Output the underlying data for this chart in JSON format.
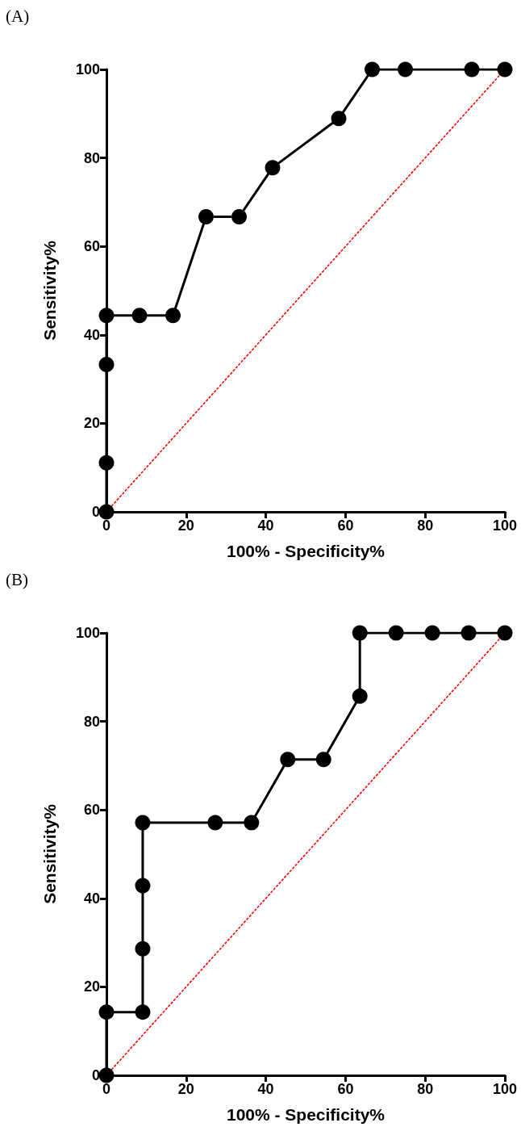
{
  "chart_data": [
    {
      "type": "line",
      "title": "(A)",
      "xlabel": "100% - Specificity%",
      "ylabel": "Sensitivity%",
      "xlim": [
        0,
        100
      ],
      "ylim": [
        0,
        100
      ],
      "xticks": [
        0,
        20,
        40,
        60,
        80,
        100
      ],
      "yticks": [
        0,
        20,
        40,
        60,
        80,
        100
      ],
      "series": [
        {
          "x": [
            0,
            0,
            0,
            0,
            8.3,
            16.7,
            25,
            33.3,
            41.7,
            58.3,
            66.7,
            75,
            91.7,
            100
          ],
          "values": [
            0,
            11.1,
            33.3,
            44.4,
            44.4,
            44.4,
            66.7,
            66.7,
            77.8,
            88.9,
            100,
            100,
            100,
            100
          ],
          "color": "#000000",
          "marker": "circle",
          "line_style": "solid"
        },
        {
          "x": [
            0,
            100
          ],
          "values": [
            0,
            100
          ],
          "color": "#ff0000",
          "marker": "none",
          "line_style": "dotted"
        }
      ]
    },
    {
      "type": "line",
      "title": "(B)",
      "xlabel": "100% - Specificity%",
      "ylabel": "Sensitivity%",
      "xlim": [
        0,
        100
      ],
      "ylim": [
        0,
        100
      ],
      "xticks": [
        0,
        20,
        40,
        60,
        80,
        100
      ],
      "yticks": [
        0,
        20,
        40,
        60,
        80,
        100
      ],
      "series": [
        {
          "x": [
            0,
            0,
            9.1,
            9.1,
            9.1,
            9.1,
            27.3,
            36.4,
            45.5,
            54.5,
            63.6,
            63.6,
            72.7,
            81.8,
            90.9,
            100
          ],
          "values": [
            0,
            14.3,
            14.3,
            28.6,
            42.9,
            57.1,
            57.1,
            57.1,
            71.4,
            71.4,
            85.7,
            100,
            100,
            100,
            100,
            100
          ],
          "color": "#000000",
          "marker": "circle",
          "line_style": "solid"
        },
        {
          "x": [
            0,
            100
          ],
          "values": [
            0,
            100
          ],
          "color": "#ff0000",
          "marker": "none",
          "line_style": "dotted"
        }
      ]
    }
  ]
}
